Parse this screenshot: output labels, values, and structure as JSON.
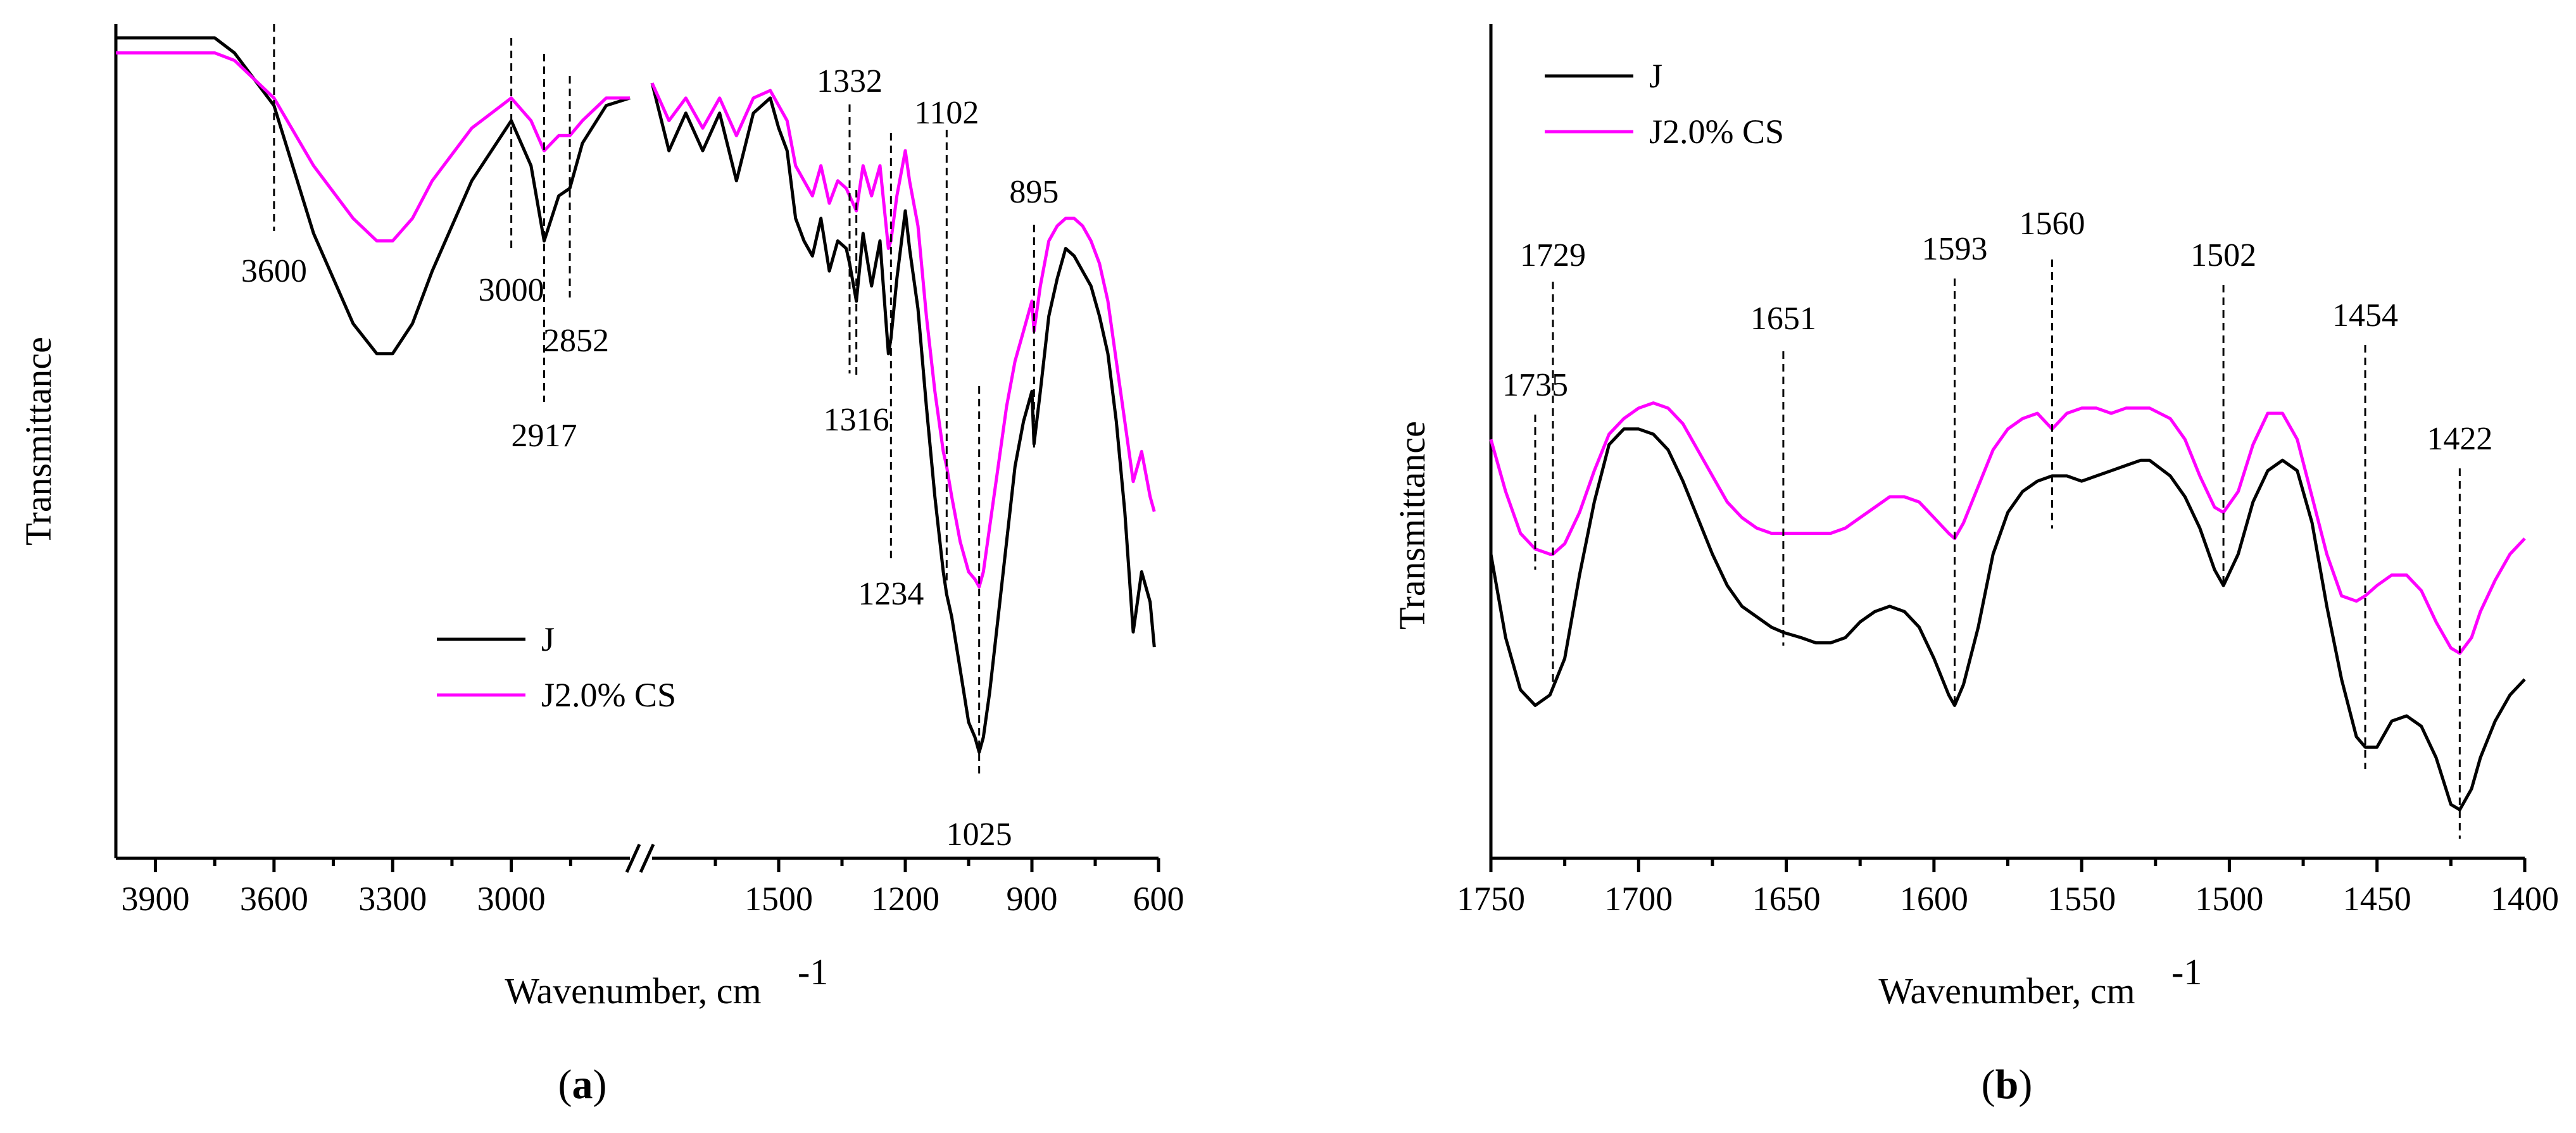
{
  "chart_data": [
    {
      "type": "line",
      "panel": "a",
      "panel_label": "a",
      "xlabel": "Wavenumber, cm",
      "xlabel_sup": "-1",
      "ylabel": "Transmittance",
      "x_break": [
        2700,
        1800
      ],
      "x_ticks": [
        "3900",
        "3600",
        "3300",
        "3000",
        "1500",
        "1200",
        "900",
        "600"
      ],
      "xlim": [
        4000,
        600
      ],
      "colors": {
        "J": "#000000",
        "J2.0% CS": "#ff00ff"
      },
      "legend": [
        "J",
        "J2.0% CS"
      ],
      "series": [
        {
          "name": "J",
          "x": [
            4000,
            3750,
            3700,
            3600,
            3500,
            3400,
            3340,
            3300,
            3250,
            3200,
            3100,
            3000,
            2950,
            2917,
            2880,
            2852,
            2820,
            2760,
            2700,
            1800,
            1760,
            1720,
            1680,
            1640,
            1600,
            1560,
            1520,
            1500,
            1480,
            1460,
            1440,
            1420,
            1400,
            1380,
            1360,
            1340,
            1332,
            1316,
            1300,
            1280,
            1260,
            1240,
            1234,
            1220,
            1200,
            1190,
            1170,
            1150,
            1130,
            1110,
            1102,
            1090,
            1070,
            1050,
            1035,
            1025,
            1015,
            1000,
            980,
            960,
            940,
            920,
            900,
            895,
            880,
            860,
            840,
            820,
            800,
            780,
            760,
            740,
            720,
            700,
            680,
            660,
            640,
            620,
            610
          ],
          "y": [
            99,
            99,
            97,
            90,
            73,
            61,
            57,
            57,
            61,
            68,
            80,
            88,
            82,
            72,
            78,
            79,
            85,
            90,
            91,
            93,
            84,
            89,
            84,
            89,
            80,
            89,
            91,
            87,
            84,
            75,
            72,
            70,
            75,
            68,
            72,
            71,
            69,
            64,
            73,
            66,
            72,
            57,
            59,
            67,
            76,
            71,
            63,
            50,
            38,
            28,
            25,
            22,
            15,
            8,
            6,
            4,
            6,
            12,
            22,
            32,
            42,
            48,
            52,
            45,
            52,
            62,
            67,
            71,
            70,
            68,
            66,
            62,
            57,
            48,
            36,
            20,
            28,
            24,
            18
          ]
        },
        {
          "name": "J2.0% CS",
          "x": [
            4000,
            3750,
            3700,
            3600,
            3500,
            3400,
            3340,
            3300,
            3250,
            3200,
            3100,
            3000,
            2950,
            2917,
            2880,
            2852,
            2820,
            2760,
            2700,
            1800,
            1760,
            1720,
            1680,
            1640,
            1600,
            1560,
            1520,
            1500,
            1480,
            1460,
            1440,
            1420,
            1400,
            1380,
            1360,
            1340,
            1332,
            1316,
            1300,
            1280,
            1260,
            1240,
            1234,
            1220,
            1200,
            1190,
            1170,
            1150,
            1130,
            1110,
            1102,
            1090,
            1070,
            1050,
            1035,
            1025,
            1015,
            1000,
            980,
            960,
            940,
            920,
            900,
            895,
            880,
            860,
            840,
            820,
            800,
            780,
            760,
            740,
            720,
            700,
            680,
            660,
            640,
            620,
            610
          ],
          "y": [
            97,
            97,
            96,
            91,
            82,
            75,
            72,
            72,
            75,
            80,
            87,
            91,
            88,
            84,
            86,
            86,
            88,
            91,
            91,
            93,
            88,
            91,
            87,
            91,
            86,
            91,
            92,
            90,
            88,
            82,
            80,
            78,
            82,
            77,
            80,
            79,
            78,
            76,
            82,
            78,
            82,
            71,
            72,
            78,
            84,
            80,
            74,
            62,
            52,
            44,
            42,
            38,
            32,
            28,
            27,
            26,
            28,
            34,
            42,
            50,
            56,
            60,
            64,
            60,
            66,
            72,
            74,
            75,
            75,
            74,
            72,
            69,
            64,
            56,
            48,
            40,
            44,
            38,
            36
          ]
        }
      ],
      "markers": [
        {
          "x": 3600,
          "label": "3600"
        },
        {
          "x": 3000,
          "label": "3000"
        },
        {
          "x": 2917,
          "label": "2917"
        },
        {
          "x": 2852,
          "label": "2852"
        },
        {
          "x": 1332,
          "label": "1332"
        },
        {
          "x": 1316,
          "label": "1316"
        },
        {
          "x": 1234,
          "label": "1234"
        },
        {
          "x": 1102,
          "label": "1102"
        },
        {
          "x": 1025,
          "label": "1025"
        },
        {
          "x": 895,
          "label": "895"
        }
      ]
    },
    {
      "type": "line",
      "panel": "b",
      "panel_label": "b",
      "xlabel": "Wavenumber, cm",
      "xlabel_sup": "-1",
      "ylabel": "Transmittance",
      "x_ticks": [
        "1750",
        "1700",
        "1650",
        "1600",
        "1550",
        "1500",
        "1450",
        "1400"
      ],
      "xlim": [
        1750,
        1400
      ],
      "colors": {
        "J": "#000000",
        "J2.0% CS": "#ff00ff"
      },
      "legend": [
        "J",
        "J2.0% CS"
      ],
      "series": [
        {
          "name": "J",
          "x": [
            1750,
            1745,
            1740,
            1735,
            1730,
            1725,
            1720,
            1715,
            1710,
            1705,
            1700,
            1695,
            1690,
            1685,
            1680,
            1675,
            1670,
            1665,
            1660,
            1655,
            1651,
            1645,
            1640,
            1635,
            1630,
            1625,
            1620,
            1615,
            1610,
            1605,
            1600,
            1595,
            1593,
            1590,
            1585,
            1580,
            1575,
            1570,
            1565,
            1560,
            1555,
            1550,
            1545,
            1540,
            1535,
            1530,
            1527,
            1520,
            1515,
            1510,
            1505,
            1502,
            1497,
            1492,
            1487,
            1482,
            1477,
            1472,
            1467,
            1462,
            1457,
            1454,
            1450,
            1445,
            1440,
            1435,
            1430,
            1425,
            1422,
            1418,
            1415,
            1410,
            1405,
            1400
          ],
          "y": [
            52,
            36,
            26,
            23,
            25,
            32,
            48,
            62,
            73,
            76,
            76,
            75,
            72,
            66,
            59,
            52,
            46,
            42,
            40,
            38,
            37,
            36,
            35,
            35,
            36,
            39,
            41,
            42,
            41,
            38,
            32,
            25,
            23,
            27,
            38,
            52,
            60,
            64,
            66,
            67,
            67,
            66,
            67,
            68,
            69,
            70,
            70,
            67,
            63,
            57,
            49,
            46,
            52,
            62,
            68,
            70,
            68,
            58,
            42,
            28,
            17,
            15,
            15,
            20,
            21,
            19,
            13,
            4,
            3,
            7,
            13,
            20,
            25,
            28
          ]
        },
        {
          "name": "J2.0% CS",
          "x": [
            1750,
            1745,
            1740,
            1735,
            1730,
            1729,
            1725,
            1720,
            1715,
            1710,
            1705,
            1700,
            1695,
            1690,
            1685,
            1680,
            1675,
            1670,
            1665,
            1660,
            1655,
            1651,
            1645,
            1640,
            1635,
            1630,
            1625,
            1620,
            1615,
            1610,
            1605,
            1600,
            1595,
            1593,
            1590,
            1585,
            1580,
            1575,
            1570,
            1565,
            1560,
            1555,
            1550,
            1545,
            1540,
            1535,
            1530,
            1527,
            1520,
            1515,
            1510,
            1505,
            1502,
            1497,
            1492,
            1487,
            1482,
            1477,
            1472,
            1467,
            1462,
            1457,
            1454,
            1450,
            1445,
            1440,
            1435,
            1430,
            1425,
            1422,
            1418,
            1415,
            1410,
            1405,
            1400
          ],
          "y": [
            74,
            64,
            56,
            53,
            52,
            52,
            54,
            60,
            68,
            75,
            78,
            80,
            81,
            80,
            77,
            72,
            67,
            62,
            59,
            57,
            56,
            56,
            56,
            56,
            56,
            57,
            59,
            61,
            63,
            63,
            62,
            59,
            56,
            55,
            58,
            65,
            72,
            76,
            78,
            79,
            76,
            79,
            80,
            80,
            79,
            80,
            80,
            80,
            78,
            74,
            67,
            61,
            60,
            64,
            73,
            79,
            79,
            74,
            63,
            52,
            44,
            43,
            44,
            46,
            48,
            48,
            45,
            39,
            34,
            33,
            36,
            41,
            47,
            52,
            55
          ]
        }
      ],
      "markers": [
        {
          "x": 1735,
          "label": "1735"
        },
        {
          "x": 1729,
          "label": "1729"
        },
        {
          "x": 1651,
          "label": "1651"
        },
        {
          "x": 1593,
          "label": "1593"
        },
        {
          "x": 1560,
          "label": "1560"
        },
        {
          "x": 1502,
          "label": "1502"
        },
        {
          "x": 1454,
          "label": "1454"
        },
        {
          "x": 1422,
          "label": "1422"
        }
      ]
    }
  ]
}
